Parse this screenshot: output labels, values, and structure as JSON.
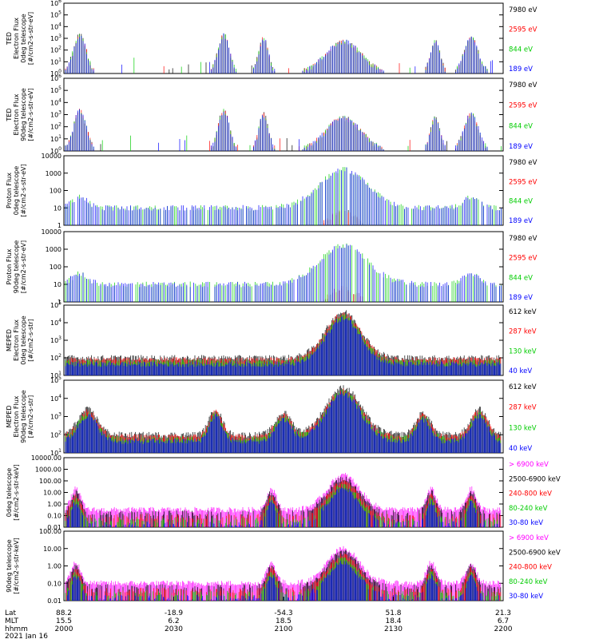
{
  "chart_data": [
    {
      "type": "line",
      "ylabel": [
        "TED",
        "Electron Flux",
        "0deg telescope",
        "[#/cm2-s-str-eV]"
      ],
      "y_scale": "log",
      "y_ticks": [
        "10^6",
        "10^5",
        "10^4",
        "10^3",
        "10^2",
        "10^1",
        "10^0"
      ],
      "legend": [
        {
          "label": "7980 eV",
          "color": "#000000"
        },
        {
          "label": "2595 eV",
          "color": "#ff0000"
        },
        {
          "label": "844 eV",
          "color": "#00cc00"
        },
        {
          "label": "189 eV",
          "color": "#0000ff"
        }
      ]
    },
    {
      "type": "line",
      "ylabel": [
        "TED",
        "Electron Flux",
        "90deg telescope",
        "[#/cm2-s-str-eV]"
      ],
      "y_scale": "log",
      "y_ticks": [
        "10^6",
        "10^5",
        "10^4",
        "10^3",
        "10^2",
        "10^1",
        "10^0"
      ],
      "legend": [
        {
          "label": "7980 eV",
          "color": "#000000"
        },
        {
          "label": "2595 eV",
          "color": "#ff0000"
        },
        {
          "label": "844 eV",
          "color": "#00cc00"
        },
        {
          "label": "189 eV",
          "color": "#0000ff"
        }
      ]
    },
    {
      "type": "line",
      "ylabel": [
        "Proton Flux",
        "0deg telescope",
        "[#/cm2-s-str-eV]"
      ],
      "y_scale": "log",
      "y_ticks": [
        "10000",
        "1000",
        "100",
        "10",
        "1"
      ],
      "legend": [
        {
          "label": "7980 eV",
          "color": "#000000"
        },
        {
          "label": "2595 eV",
          "color": "#ff0000"
        },
        {
          "label": "844 eV",
          "color": "#00cc00"
        },
        {
          "label": "189 eV",
          "color": "#0000ff"
        }
      ]
    },
    {
      "type": "line",
      "ylabel": [
        "Proton Flux",
        "90deg telescope",
        "[#/cm2-s-str-eV]"
      ],
      "y_scale": "log",
      "y_ticks": [
        "10000",
        "1000",
        "100",
        "10",
        "1"
      ],
      "legend": [
        {
          "label": "7980 eV",
          "color": "#000000"
        },
        {
          "label": "2595 eV",
          "color": "#ff0000"
        },
        {
          "label": "844 eV",
          "color": "#00cc00"
        },
        {
          "label": "189 eV",
          "color": "#0000ff"
        }
      ]
    },
    {
      "type": "line",
      "ylabel": [
        "MEPED",
        "Electron Flux",
        "0deg telescope",
        "[#/cm2-s-str]"
      ],
      "y_scale": "log",
      "y_ticks": [
        "10^5",
        "10^4",
        "10^3",
        "10^2",
        "10^1"
      ],
      "legend": [
        {
          "label": "612 keV",
          "color": "#000000"
        },
        {
          "label": "287 keV",
          "color": "#ff0000"
        },
        {
          "label": "130 keV",
          "color": "#00cc00"
        },
        {
          "label": "40 keV",
          "color": "#0000ff"
        }
      ]
    },
    {
      "type": "line",
      "ylabel": [
        "MEPED",
        "Electron Flux",
        "90deg telescope",
        "[#/cm2-s-str]"
      ],
      "y_scale": "log",
      "y_ticks": [
        "10^5",
        "10^4",
        "10^3",
        "10^2",
        "10^1"
      ],
      "legend": [
        {
          "label": "612 keV",
          "color": "#000000"
        },
        {
          "label": "287 keV",
          "color": "#ff0000"
        },
        {
          "label": "130 keV",
          "color": "#00cc00"
        },
        {
          "label": "40 keV",
          "color": "#0000ff"
        }
      ]
    },
    {
      "type": "line",
      "ylabel": [
        "0deg telescope",
        "[#/cm2-s-str-keV]"
      ],
      "y_scale": "log",
      "y_ticks": [
        "10000.00",
        "1000.00",
        "100.00",
        "10.00",
        "1.00",
        "0.10",
        "0.01"
      ],
      "legend": [
        {
          "label": "> 6900 keV",
          "color": "#ff00ff"
        },
        {
          "label": "2500-6900 keV",
          "color": "#000000"
        },
        {
          "label": "240-800 keV",
          "color": "#ff0000"
        },
        {
          "label": "80-240 keV",
          "color": "#00cc00"
        },
        {
          "label": "30-80 keV",
          "color": "#0000ff"
        }
      ]
    },
    {
      "type": "line",
      "ylabel": [
        "90deg telescope",
        "[#/cm2-s-str-keV]"
      ],
      "y_scale": "log",
      "y_ticks": [
        "100.00",
        "10.00",
        "1.00",
        "0.10",
        "0.01"
      ],
      "legend": [
        {
          "label": "> 6900 keV",
          "color": "#ff00ff"
        },
        {
          "label": "2500-6900 keV",
          "color": "#000000"
        },
        {
          "label": "240-800 keV",
          "color": "#ff0000"
        },
        {
          "label": "80-240 keV",
          "color": "#00cc00"
        },
        {
          "label": "30-80 keV",
          "color": "#0000ff"
        }
      ]
    }
  ],
  "x_axis": {
    "row_labels": [
      "Lat",
      "MLT",
      "hhmm"
    ],
    "columns": [
      {
        "lat": "88.2",
        "mlt": "15.5",
        "hhmm": "2000"
      },
      {
        "lat": "-18.9",
        "mlt": "6.2",
        "hhmm": "2030"
      },
      {
        "lat": "-54.3",
        "mlt": "18.5",
        "hhmm": "2100"
      },
      {
        "lat": "51.8",
        "mlt": "18.4",
        "hhmm": "2130"
      },
      {
        "lat": "21.3",
        "mlt": "6.7",
        "hhmm": "2200"
      }
    ],
    "date": "2021 Jan 16"
  }
}
